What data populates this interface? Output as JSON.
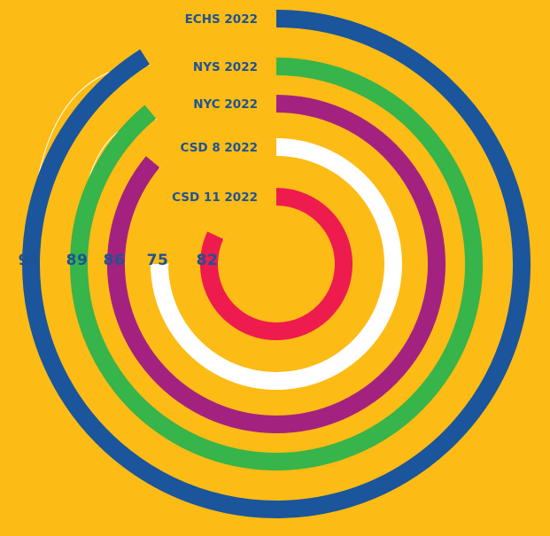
{
  "chart_data": {
    "type": "radial-bar",
    "value_max": 100,
    "background_color": "#FDBB15",
    "label_color": "#1E5394",
    "connector_color": "#FFFFFF",
    "series": [
      {
        "name": "ECHS 2022",
        "value": 91,
        "color": "#1B559C"
      },
      {
        "name": "NYS 2022",
        "value": 89,
        "color": "#37B44A"
      },
      {
        "name": "NYC 2022",
        "value": 86,
        "color": "#A4227F"
      },
      {
        "name": "CSD 8 2022",
        "value": 75,
        "color": "#FFFFFF"
      },
      {
        "name": "CSD 11 2022",
        "value": 82,
        "color": "#EE1B4E"
      }
    ]
  }
}
